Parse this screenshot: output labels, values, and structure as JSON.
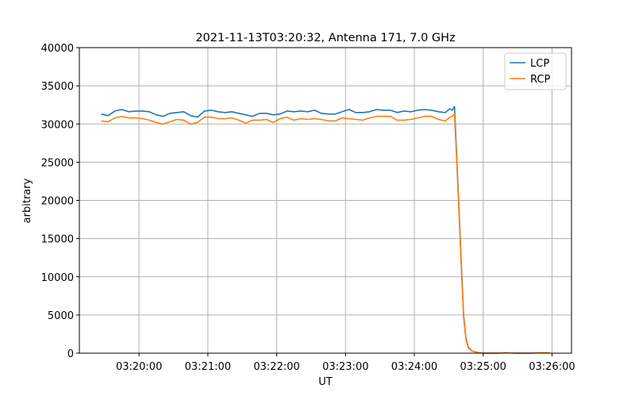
{
  "chart_data": {
    "type": "line",
    "title": "2021-11-13T03:20:32, Antenna 171, 7.0 GHz",
    "xlabel": "UT",
    "ylabel": "arbitrary",
    "xlim": [
      "03:19:08",
      "03:26:17"
    ],
    "ylim": [
      0,
      40000
    ],
    "xticks": [
      "03:20:00",
      "03:21:00",
      "03:22:00",
      "03:23:00",
      "03:24:00",
      "03:25:00",
      "03:26:00"
    ],
    "yticks": [
      0,
      5000,
      10000,
      15000,
      20000,
      25000,
      30000,
      35000,
      40000
    ],
    "grid": true,
    "legend_placement": "top-right",
    "x": [
      "03:19:27",
      "03:19:33",
      "03:19:39",
      "03:19:45",
      "03:19:51",
      "03:19:57",
      "03:20:03",
      "03:20:09",
      "03:20:15",
      "03:20:21",
      "03:20:27",
      "03:20:33",
      "03:20:39",
      "03:20:45",
      "03:20:51",
      "03:20:57",
      "03:21:03",
      "03:21:09",
      "03:21:15",
      "03:21:21",
      "03:21:27",
      "03:21:33",
      "03:21:39",
      "03:21:45",
      "03:21:51",
      "03:21:57",
      "03:22:03",
      "03:22:09",
      "03:22:15",
      "03:22:21",
      "03:22:27",
      "03:22:33",
      "03:22:39",
      "03:22:45",
      "03:22:51",
      "03:22:57",
      "03:23:03",
      "03:23:09",
      "03:23:15",
      "03:23:21",
      "03:23:27",
      "03:23:33",
      "03:23:39",
      "03:23:45",
      "03:23:51",
      "03:23:57",
      "03:24:03",
      "03:24:09",
      "03:24:15",
      "03:24:21",
      "03:24:27",
      "03:24:31",
      "03:24:33",
      "03:24:35",
      "03:24:37",
      "03:24:39",
      "03:24:41",
      "03:24:43",
      "03:24:45",
      "03:24:47",
      "03:24:50",
      "03:24:55",
      "03:25:00",
      "03:25:10",
      "03:25:20",
      "03:25:30",
      "03:25:40",
      "03:25:50",
      "03:25:58"
    ],
    "series": [
      {
        "name": "LCP",
        "color": "#1f77b4",
        "values": [
          31300,
          31100,
          31700,
          31900,
          31600,
          31700,
          31700,
          31600,
          31200,
          31000,
          31400,
          31500,
          31600,
          31100,
          30900,
          31700,
          31800,
          31600,
          31500,
          31600,
          31400,
          31200,
          31000,
          31400,
          31400,
          31200,
          31300,
          31700,
          31600,
          31700,
          31600,
          31800,
          31400,
          31300,
          31300,
          31600,
          31900,
          31500,
          31500,
          31600,
          31900,
          31800,
          31800,
          31500,
          31700,
          31600,
          31800,
          31900,
          31800,
          31600,
          31500,
          32000,
          31800,
          32300,
          25500,
          18500,
          11500,
          5000,
          2000,
          800,
          300,
          100,
          0,
          0,
          50,
          0,
          0,
          50,
          50
        ]
      },
      {
        "name": "RCP",
        "color": "#ff7f0e",
        "values": [
          30400,
          30300,
          30800,
          31000,
          30800,
          30800,
          30700,
          30500,
          30200,
          30000,
          30300,
          30600,
          30500,
          30000,
          30200,
          30900,
          30900,
          30700,
          30700,
          30800,
          30500,
          30100,
          30500,
          30500,
          30600,
          30200,
          30700,
          30900,
          30500,
          30700,
          30600,
          30700,
          30600,
          30400,
          30400,
          30800,
          30700,
          30600,
          30500,
          30800,
          31000,
          31000,
          31000,
          30500,
          30500,
          30600,
          30800,
          31000,
          31000,
          30600,
          30400,
          30900,
          31000,
          31300,
          25000,
          18000,
          11000,
          4700,
          1800,
          700,
          300,
          100,
          0,
          0,
          50,
          0,
          0,
          50,
          50
        ]
      }
    ]
  }
}
